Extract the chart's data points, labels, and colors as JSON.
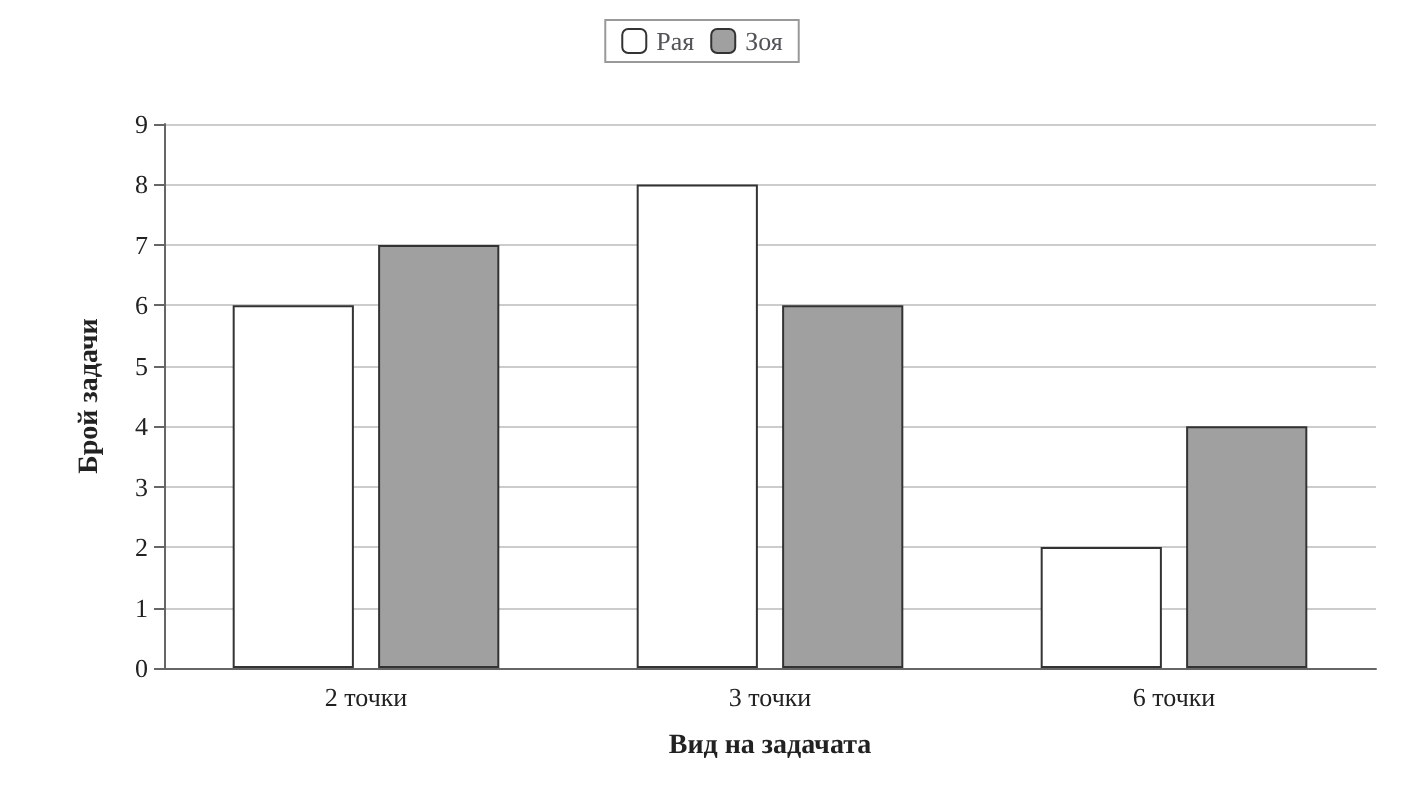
{
  "chart_data": {
    "type": "bar",
    "categories": [
      "2 точки",
      "3 точки",
      "6 точки"
    ],
    "series": [
      {
        "name": "Рая",
        "color": "#ffffff",
        "values": [
          6,
          8,
          2
        ]
      },
      {
        "name": "Зоя",
        "color": "#a0a0a0",
        "values": [
          7,
          6,
          4
        ]
      }
    ],
    "xlabel": "Вид на задачата",
    "ylabel": "Брой задачи",
    "ylim": [
      0,
      9
    ],
    "yticks": [
      0,
      1,
      2,
      3,
      4,
      5,
      6,
      7,
      8,
      9
    ],
    "grid": "y",
    "legend": "top"
  }
}
